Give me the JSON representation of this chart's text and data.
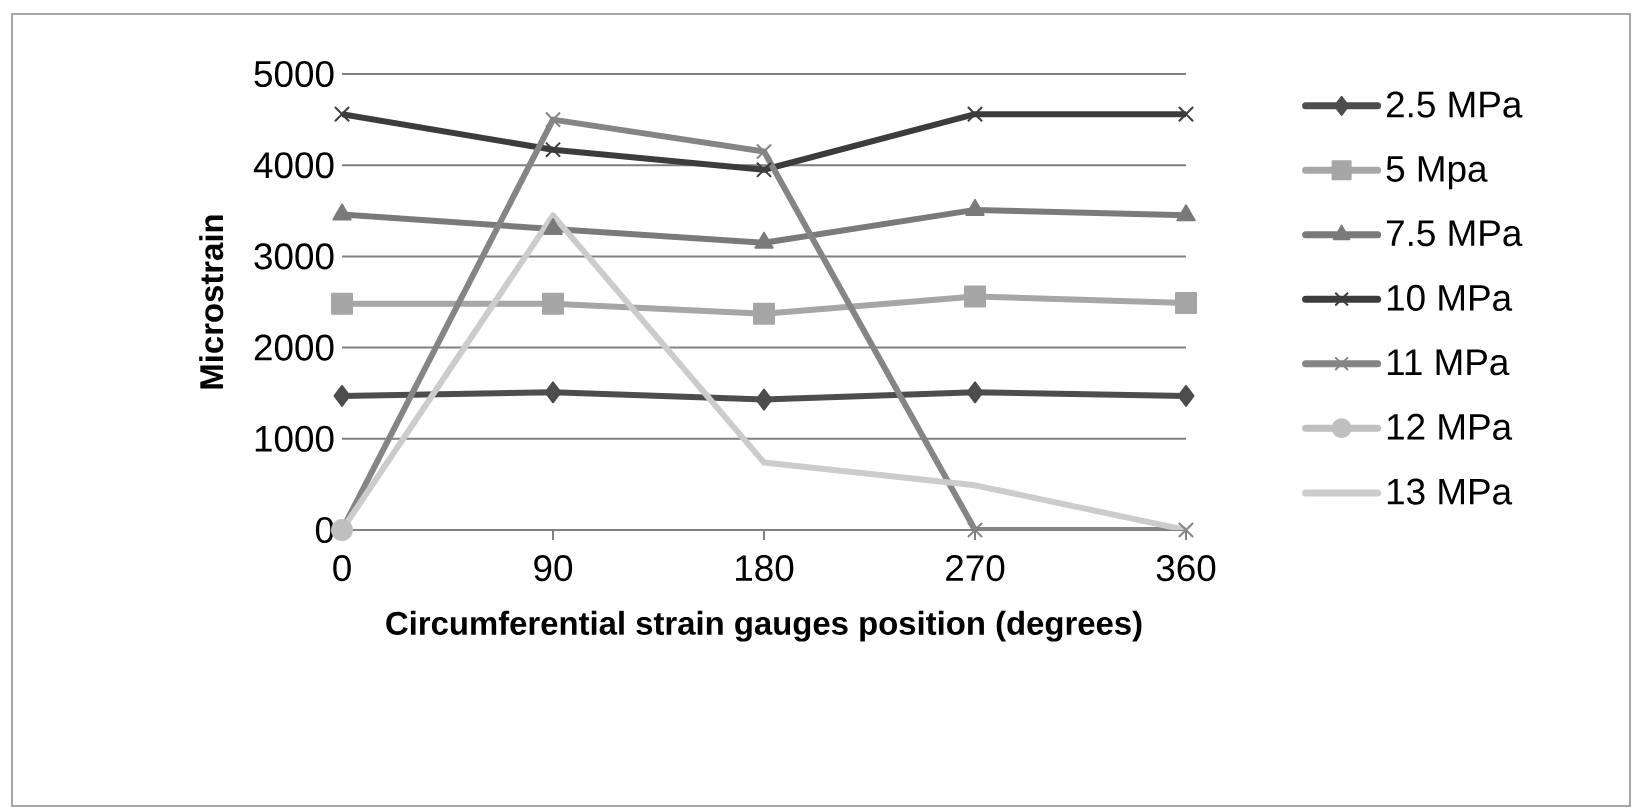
{
  "chart_data": {
    "type": "line",
    "xlabel": "Circumferential strain gauges position (degrees)",
    "ylabel": "Microstrain",
    "x": [
      0,
      90,
      180,
      270,
      360
    ],
    "xlim": [
      0,
      360
    ],
    "xticks": [
      0,
      90,
      180,
      270,
      360
    ],
    "ylim": [
      0,
      5000
    ],
    "yticks": [
      0,
      1000,
      2000,
      3000,
      4000,
      5000
    ],
    "grid": "y",
    "legend": "right",
    "line_style": "solid",
    "series": [
      {
        "name": "2.5 MPa",
        "color": "#4d4d4d",
        "marker": "diamond",
        "values": [
          1470,
          1510,
          1430,
          1510,
          1470
        ]
      },
      {
        "name": "5 Mpa",
        "color": "#a6a6a6",
        "marker": "square",
        "values": [
          2480,
          2480,
          2370,
          2560,
          2490
        ]
      },
      {
        "name": "7.5 MPa",
        "color": "#7a7a7a",
        "marker": "triangle",
        "values": [
          3460,
          3300,
          3150,
          3510,
          3450
        ]
      },
      {
        "name": "10 MPa",
        "color": "#3c3c3c",
        "marker": "cross",
        "values": [
          4560,
          4170,
          3950,
          4560,
          4560
        ]
      },
      {
        "name": "11 MPa",
        "color": "#858585",
        "marker": "cross",
        "values": [
          0,
          4500,
          4150,
          0,
          0
        ]
      },
      {
        "name": "12 MPa",
        "color": "#c0c0c0",
        "marker": "circle",
        "values": [
          0,
          null,
          null,
          null,
          null
        ]
      },
      {
        "name": "13 MPa",
        "color": "#cccccc",
        "marker": "none",
        "values": [
          0,
          3450,
          740,
          490,
          0
        ]
      }
    ]
  }
}
